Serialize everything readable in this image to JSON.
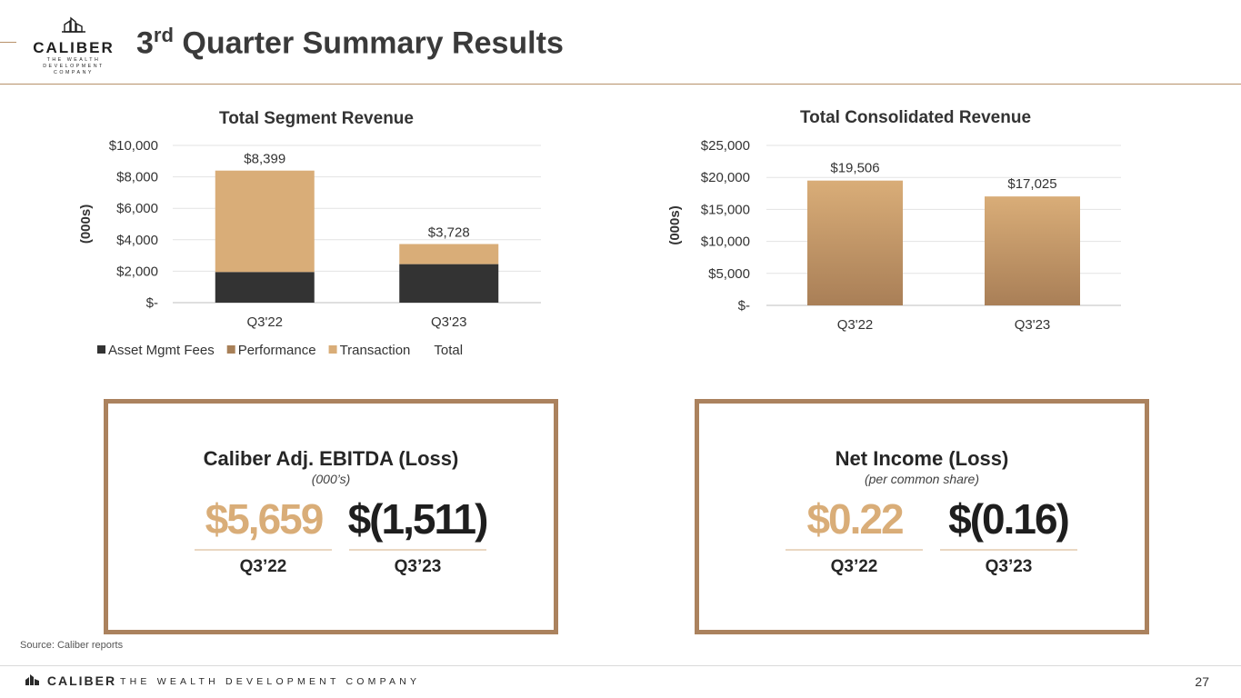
{
  "header": {
    "logo_word": "CALIBER",
    "logo_sub1": "THE WEALTH DEVELOPMENT",
    "logo_sub2": "COMPANY",
    "title_prefix": "3",
    "title_sup": "rd",
    "title_rest": " Quarter Summary Results"
  },
  "colors": {
    "asset_mgmt": "#333333",
    "performance": "#a88058",
    "transaction": "#d9ad78",
    "gold_prev": "#d9ad78",
    "border": "#ab825e"
  },
  "chart_data": [
    {
      "type": "bar",
      "stacked": true,
      "title": "Total Segment Revenue",
      "ylabel": "(000s)",
      "categories": [
        "Q3'22",
        "Q3'23"
      ],
      "series": [
        {
          "name": "Asset Mgmt Fees",
          "values": [
            1950,
            2450
          ]
        },
        {
          "name": "Performance",
          "values": [
            0,
            0
          ]
        },
        {
          "name": "Transaction",
          "values": [
            6449,
            1278
          ]
        }
      ],
      "totals": [
        8399,
        3728
      ],
      "total_labels": [
        "$8,399",
        "$3,728"
      ],
      "total_series_name": "Total",
      "ylim": [
        0,
        10000
      ],
      "yticks": [
        0,
        2000,
        4000,
        6000,
        8000,
        10000
      ],
      "ytick_labels": [
        "$-",
        "$2,000",
        "$4,000",
        "$6,000",
        "$8,000",
        "$10,000"
      ],
      "legend_position": "bottom",
      "grid": true
    },
    {
      "type": "bar",
      "title": "Total Consolidated Revenue",
      "ylabel": "(000s)",
      "categories": [
        "Q3'22",
        "Q3'23"
      ],
      "values": [
        19506,
        17025
      ],
      "value_labels": [
        "$19,506",
        "$17,025"
      ],
      "ylim": [
        0,
        25000
      ],
      "yticks": [
        0,
        5000,
        10000,
        15000,
        20000,
        25000
      ],
      "ytick_labels": [
        "$-",
        "$5,000",
        "$10,000",
        "$15,000",
        "$20,000",
        "$25,000"
      ],
      "grid": true
    }
  ],
  "ebitda": {
    "title": "Caliber Adj. EBITDA (Loss)",
    "subtitle": "(000’s)",
    "prev_value": "$5,659",
    "curr_value": "$(1,511)",
    "prev_label": "Q3’22",
    "curr_label": "Q3’23"
  },
  "net_income": {
    "title": "Net Income (Loss)",
    "subtitle": "(per common share)",
    "prev_value": "$0.22",
    "curr_value": "$(0.16)",
    "prev_label": "Q3’22",
    "curr_label": "Q3’23"
  },
  "footer": {
    "source": "Source: Caliber reports",
    "brand": "CALIBER",
    "tagline": "THE WEALTH DEVELOPMENT COMPANY",
    "page_number": "27"
  }
}
